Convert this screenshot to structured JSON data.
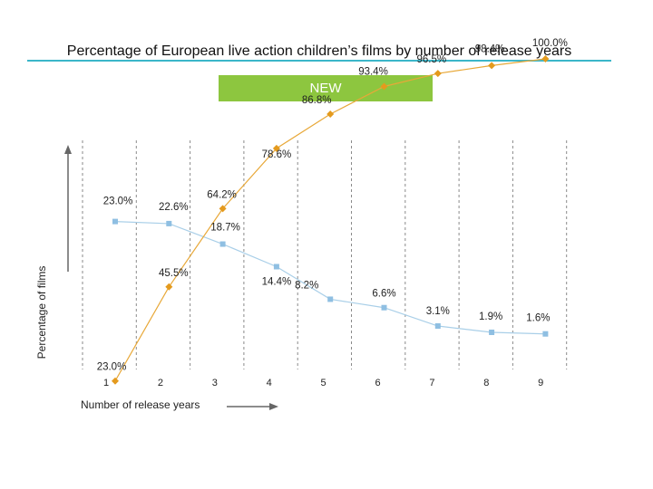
{
  "title": "Percentage of European live action children’s films by number of release years",
  "badge": "NEW",
  "colors": {
    "title_rule": "#3bb6c9",
    "badge_bg": "#8dc63f",
    "badge_text": "#ffffff",
    "blue_series": "#a9cfe8",
    "blue_marker": "#8fbfe2",
    "orange_series": "#e8a838",
    "orange_marker": "#e49a1d",
    "gridline": "#8a8a8a"
  },
  "chart_data": {
    "type": "line",
    "xlabel": "Number of release years",
    "ylabel": "Percentage of films",
    "x": [
      1,
      2,
      3,
      4,
      5,
      6,
      7,
      8,
      9
    ],
    "ylim": [
      0,
      100
    ],
    "grid": "dashed vertical lines between categories",
    "series": [
      {
        "marker": "square",
        "color": "blue",
        "values": [
          23.0,
          22.6,
          18.7,
          14.4,
          8.2,
          6.6,
          3.1,
          1.9,
          1.6
        ],
        "labels": [
          "23.0%",
          "22.6%",
          "18.7%",
          "14.4%",
          "8.2%",
          "6.6%",
          "3.1%",
          "1.9%",
          "1.6%"
        ]
      },
      {
        "marker": "diamond",
        "color": "orange",
        "values": [
          23.0,
          45.5,
          64.2,
          78.6,
          86.8,
          93.4,
          96.5,
          98.4,
          100.0
        ],
        "labels": [
          "23.0%",
          "45.5%",
          "64.2%",
          "78.6%",
          "86.8%",
          "93.4%",
          "96.5%",
          "98.4%",
          "100.0%"
        ]
      }
    ]
  }
}
